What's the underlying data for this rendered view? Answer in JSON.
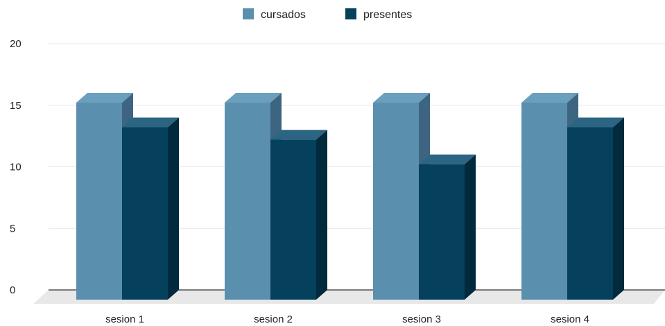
{
  "chart_data": {
    "type": "bar",
    "categories": [
      "sesion 1",
      "sesion 2",
      "sesion 3",
      "sesion 4"
    ],
    "series": [
      {
        "name": "cursados",
        "values": [
          16,
          16,
          16,
          16
        ],
        "color": "#5b8fae",
        "top": "#6b9fbe",
        "side": "#3d6582"
      },
      {
        "name": "presentes",
        "values": [
          14,
          13,
          11,
          14
        ],
        "color": "#05405c",
        "top": "#2c6583",
        "side": "#012a3d"
      }
    ],
    "ylim": [
      0,
      20
    ],
    "yticks": [
      0,
      5,
      10,
      15,
      20
    ],
    "grid": true,
    "legend": "top",
    "style": "3d"
  }
}
